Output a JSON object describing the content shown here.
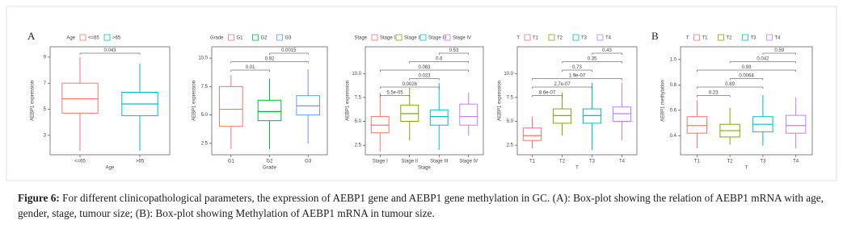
{
  "panel_labels": [
    "A",
    "B"
  ],
  "caption": {
    "label": "Figure 6:",
    "text": "For different clinicopathological parameters, the expression of AEBP1 gene and AEBP1 gene methylation in GC. (A): Box-plot showing the relation of AEBP1 mRNA with age, gender, stage, tumour size; (B): Box-plot showing Methylation of AEBP1 mRNA in tumour size."
  },
  "chart_data": [
    {
      "type": "box",
      "legend_title": "Age",
      "x_label": "Age",
      "y_label": "AEBP1 expression",
      "ylim": [
        1.5,
        9.8
      ],
      "yticks": [
        3,
        5,
        7,
        9
      ],
      "series": [
        {
          "name": "<=65",
          "color": "#f8766d",
          "min": 1.8,
          "q1": 4.7,
          "median": 5.8,
          "q3": 7.0,
          "max": 9.0
        },
        {
          "name": ">65",
          "color": "#00bfc4",
          "min": 1.8,
          "q1": 4.5,
          "median": 5.4,
          "q3": 6.3,
          "max": 8.5
        }
      ],
      "comparisons": [
        {
          "groups": [
            "<=65",
            ">65"
          ],
          "label": "0.043"
        }
      ]
    },
    {
      "type": "box",
      "legend_title": "Grade",
      "x_label": "Grade",
      "y_label": "AEBP1 expression",
      "ylim": [
        1.5,
        11
      ],
      "yticks": [
        2.5,
        {
          "value": 5,
          "label": "5.0"
        },
        7.5,
        {
          "value": 10,
          "label": "10.0"
        }
      ],
      "series": [
        {
          "name": "G1",
          "color": "#f8766d",
          "min": 2.0,
          "q1": 4.0,
          "median": 5.5,
          "q3": 7.5,
          "max": 8.5
        },
        {
          "name": "G2",
          "color": "#00ba38",
          "min": 2.0,
          "q1": 4.5,
          "median": 5.3,
          "q3": 6.3,
          "max": 8.2
        },
        {
          "name": "G3",
          "color": "#619cff",
          "min": 2.5,
          "q1": 5.0,
          "median": 5.8,
          "q3": 6.7,
          "max": 9.0
        }
      ],
      "comparisons": [
        {
          "groups": [
            "G1",
            "G2"
          ],
          "label": "0.01"
        },
        {
          "groups": [
            "G1",
            "G3"
          ],
          "label": "0.92"
        },
        {
          "groups": [
            "G2",
            "G3"
          ],
          "label": "0.0015"
        }
      ]
    },
    {
      "type": "box",
      "legend_title": "Stage",
      "x_label": "Stage",
      "y_label": "AEBP1 expression",
      "ylim": [
        1.5,
        12.8
      ],
      "yticks": [
        2.5,
        {
          "value": 5,
          "label": "5.0"
        },
        7.5,
        {
          "value": 10,
          "label": "10.0"
        }
      ],
      "series": [
        {
          "name": "Stage I",
          "color": "#f8766d",
          "min": 1.8,
          "q1": 3.8,
          "median": 4.6,
          "q3": 5.5,
          "max": 8.0
        },
        {
          "name": "Stage II",
          "color": "#7cae00",
          "min": 3.0,
          "q1": 5.0,
          "median": 5.8,
          "q3": 6.7,
          "max": 8.5
        },
        {
          "name": "Stage III",
          "color": "#00bfc4",
          "min": 2.0,
          "q1": 4.6,
          "median": 5.5,
          "q3": 6.2,
          "max": 9.0
        },
        {
          "name": "Stage IV",
          "color": "#c77cff",
          "min": 3.5,
          "q1": 4.6,
          "median": 5.5,
          "q3": 6.8,
          "max": 8.0
        }
      ],
      "comparisons": [
        {
          "groups": [
            "Stage I",
            "Stage II"
          ],
          "label": "5.5e-05"
        },
        {
          "groups": [
            "Stage I",
            "Stage III"
          ],
          "label": "0.0026"
        },
        {
          "groups": [
            "Stage II",
            "Stage III"
          ],
          "label": "0.023"
        },
        {
          "groups": [
            "Stage I",
            "Stage IV"
          ],
          "label": "0.083"
        },
        {
          "groups": [
            "Stage II",
            "Stage IV"
          ],
          "label": "0.6"
        },
        {
          "groups": [
            "Stage III",
            "Stage IV"
          ],
          "label": "0.53"
        }
      ]
    },
    {
      "type": "box",
      "legend_title": "T",
      "x_label": "T",
      "y_label": "AEBP1 expression",
      "ylim": [
        1.5,
        12.8
      ],
      "yticks": [
        2.5,
        {
          "value": 5,
          "label": "5.0"
        },
        7.5,
        {
          "value": 10,
          "label": "10.0"
        }
      ],
      "series": [
        {
          "name": "T1",
          "color": "#f8766d",
          "min": 2.2,
          "q1": 3.0,
          "median": 3.5,
          "q3": 4.3,
          "max": 5.5
        },
        {
          "name": "T2",
          "color": "#7cae00",
          "min": 3.5,
          "q1": 4.8,
          "median": 5.6,
          "q3": 6.3,
          "max": 8.0
        },
        {
          "name": "T3",
          "color": "#00bfc4",
          "min": 2.0,
          "q1": 4.8,
          "median": 5.6,
          "q3": 6.3,
          "max": 9.0
        },
        {
          "name": "T4",
          "color": "#c77cff",
          "min": 3.0,
          "q1": 5.0,
          "median": 5.8,
          "q3": 6.5,
          "max": 9.0
        }
      ],
      "comparisons": [
        {
          "groups": [
            "T1",
            "T2"
          ],
          "label": "8.6e-07"
        },
        {
          "groups": [
            "T1",
            "T3"
          ],
          "label": "2.7e-07"
        },
        {
          "groups": [
            "T1",
            "T4"
          ],
          "label": "1.9e-07"
        },
        {
          "groups": [
            "T2",
            "T3"
          ],
          "label": "0.73"
        },
        {
          "groups": [
            "T2",
            "T4"
          ],
          "label": "0.35"
        },
        {
          "groups": [
            "T3",
            "T4"
          ],
          "label": "0.43"
        }
      ]
    },
    {
      "type": "box",
      "legend_title": "T",
      "x_label": "T",
      "y_label": "AEBP1 methylation",
      "ylim": [
        0.25,
        1.1
      ],
      "yticks": [
        0.4,
        0.6,
        0.8,
        {
          "value": 1,
          "label": "1.0"
        }
      ],
      "series": [
        {
          "name": "T1",
          "color": "#f8766d",
          "min": 0.3,
          "q1": 0.42,
          "median": 0.48,
          "q3": 0.55,
          "max": 0.68
        },
        {
          "name": "T2",
          "color": "#7cae00",
          "min": 0.33,
          "q1": 0.39,
          "median": 0.44,
          "q3": 0.49,
          "max": 0.62
        },
        {
          "name": "T3",
          "color": "#00bfc4",
          "min": 0.32,
          "q1": 0.43,
          "median": 0.49,
          "q3": 0.55,
          "max": 0.72
        },
        {
          "name": "T4",
          "color": "#c77cff",
          "min": 0.3,
          "q1": 0.42,
          "median": 0.48,
          "q3": 0.56,
          "max": 0.7
        }
      ],
      "comparisons": [
        {
          "groups": [
            "T1",
            "T2"
          ],
          "label": "0.23"
        },
        {
          "groups": [
            "T1",
            "T3"
          ],
          "label": "0.89"
        },
        {
          "groups": [
            "T2",
            "T3"
          ],
          "label": "0.0064"
        },
        {
          "groups": [
            "T1",
            "T4"
          ],
          "label": "0.93"
        },
        {
          "groups": [
            "T2",
            "T4"
          ],
          "label": "0.042"
        },
        {
          "groups": [
            "T3",
            "T4"
          ],
          "label": "0.59"
        }
      ]
    }
  ]
}
